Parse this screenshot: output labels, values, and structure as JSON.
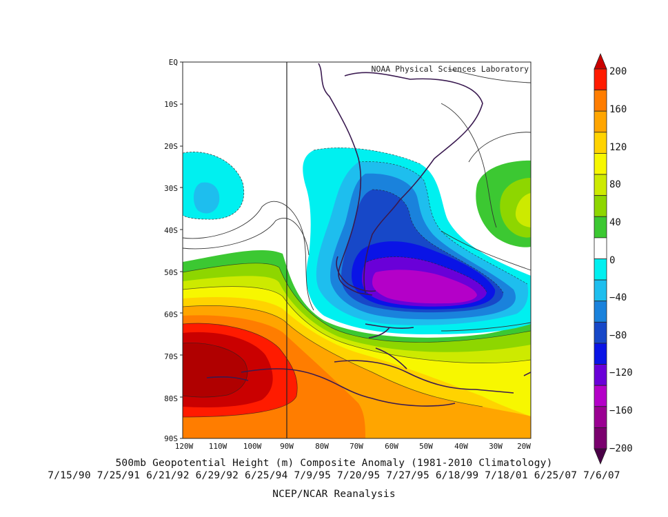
{
  "map": {
    "watermark": "NOAA Physical Sciences Laboratory",
    "lat_labels": [
      "EQ",
      "10S",
      "20S",
      "30S",
      "40S",
      "50S",
      "60S",
      "70S",
      "80S",
      "90S"
    ],
    "lon_labels": [
      "120W",
      "110W",
      "100W",
      "90W",
      "80W",
      "70W",
      "60W",
      "50W",
      "40W",
      "30W",
      "20W"
    ]
  },
  "colorbar": {
    "tick_labels": [
      "200",
      "160",
      "120",
      "80",
      "40",
      "0",
      "−40",
      "−80",
      "−120",
      "−160",
      "−200"
    ],
    "levels": [
      {
        "range": "above 180",
        "color": "#ca0000"
      },
      {
        "range": "160 to 180",
        "color": "#ff1b00"
      },
      {
        "range": "140 to 160",
        "color": "#ff7d00"
      },
      {
        "range": "120 to 140",
        "color": "#ffa500"
      },
      {
        "range": "100 to 120",
        "color": "#ffd300"
      },
      {
        "range": "80 to 100",
        "color": "#f7f700"
      },
      {
        "range": "60 to 80",
        "color": "#cdea00"
      },
      {
        "range": "40 to 60",
        "color": "#8ed600"
      },
      {
        "range": "20 to 40",
        "color": "#3cc832"
      },
      {
        "range": "-20 to 20",
        "color": "#ffffff"
      },
      {
        "range": "-40 to -20",
        "color": "#00f0f0"
      },
      {
        "range": "-60 to -40",
        "color": "#1ebeee"
      },
      {
        "range": "-80 to -60",
        "color": "#1a82dc"
      },
      {
        "range": "-100 to -80",
        "color": "#1748c8"
      },
      {
        "range": "-120 to -100",
        "color": "#0a14e6"
      },
      {
        "range": "-140 to -120",
        "color": "#6a00d8"
      },
      {
        "range": "-160 to -140",
        "color": "#b400c8"
      },
      {
        "range": "-180 to -160",
        "color": "#9a0092"
      },
      {
        "range": "-200 to -180",
        "color": "#7a006e"
      },
      {
        "range": "below -200",
        "color": "#4a0046"
      }
    ]
  },
  "captions": {
    "title": "500mb Geopotential Height (m) Composite Anomaly (1981-2010 Climatology)",
    "dates": "7/15/90 7/25/91 6/21/92 6/29/92 6/25/94 7/9/95 7/20/95 7/27/95 6/18/99 7/18/01 6/25/07 7/6/07",
    "source": "NCEP/NCAR Reanalysis"
  }
}
